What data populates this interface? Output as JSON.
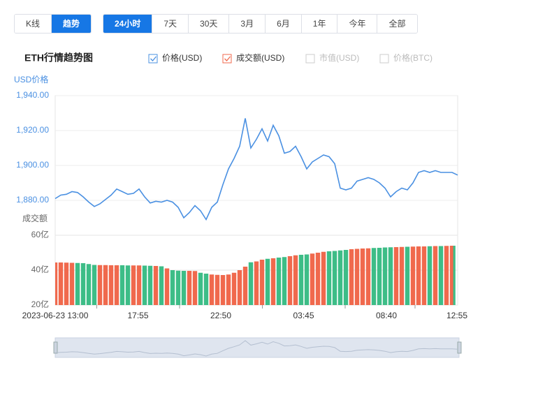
{
  "ui": {
    "view_tabs": [
      "K线",
      "趋势"
    ],
    "active_view": 1,
    "range_tabs": [
      "24小时",
      "7天",
      "30天",
      "3月",
      "6月",
      "1年",
      "今年",
      "全部"
    ],
    "active_range": 0,
    "legend_inactive": [
      "市值(USD)",
      "价格(BTC)"
    ]
  },
  "chart_data": [
    {
      "type": "line",
      "title": "ETH行情趋势图",
      "y_label": "USD价格",
      "series": [
        {
          "name": "价格(USD)",
          "color": "#4a90e2",
          "values": [
            1881,
            1883,
            1883.5,
            1885,
            1884.5,
            1882,
            1879,
            1876.5,
            1878,
            1880.5,
            1883,
            1886.5,
            1885,
            1883.5,
            1884,
            1886.5,
            1882,
            1878.5,
            1879.5,
            1879,
            1880,
            1879,
            1876,
            1870,
            1873,
            1877,
            1874,
            1869,
            1876,
            1879,
            1889,
            1898,
            1904,
            1911,
            1927,
            1910,
            1915,
            1921,
            1914,
            1923,
            1917,
            1907,
            1908,
            1911,
            1905,
            1898,
            1902,
            1904,
            1906,
            1905,
            1901,
            1887,
            1886,
            1887,
            1891,
            1892,
            1893,
            1892,
            1890,
            1887,
            1882,
            1885,
            1887,
            1886,
            1890,
            1896,
            1897,
            1896,
            1897,
            1896,
            1896,
            1896,
            1894.5
          ]
        }
      ],
      "ylim": [
        1860,
        1940
      ],
      "yticks": [
        {
          "value": 1880,
          "label": "1,880.00"
        },
        {
          "value": 1900,
          "label": "1,900.00"
        },
        {
          "value": 1920,
          "label": "1,920.00"
        },
        {
          "value": 1940,
          "label": "1,940.00"
        }
      ],
      "grid": true
    },
    {
      "type": "bar",
      "y_label": "成交额",
      "series": [
        {
          "name": "成交额(USD)",
          "color": "#f0694d",
          "down_color": "#3dbd87",
          "values": [
            44.4,
            44.4,
            44.3,
            44.2,
            44.1,
            44,
            43.5,
            43,
            42.9,
            42.9,
            42.8,
            42.8,
            42.8,
            42.7,
            42.7,
            42.7,
            42.6,
            42.5,
            42.4,
            42.2,
            41,
            40,
            39.7,
            39.6,
            39.6,
            39.5,
            38.5,
            38,
            37.5,
            37.3,
            37.2,
            37.5,
            38.5,
            40,
            42,
            44.5,
            45,
            46,
            46.5,
            46.8,
            47.2,
            47.5,
            48,
            48.5,
            48.8,
            49,
            49.5,
            50,
            50.5,
            50.8,
            51,
            51.3,
            51.6,
            52,
            52.2,
            52.4,
            52.5,
            52.7,
            52.8,
            53,
            53.1,
            53.2,
            53.3,
            53.4,
            53.5,
            53.6,
            53.6,
            53.7,
            53.8,
            53.8,
            53.9,
            54,
            54
          ]
        }
      ],
      "ylim": [
        20,
        60
      ],
      "yticks": [
        {
          "value": 20,
          "label": "20亿"
        },
        {
          "value": 40,
          "label": "40亿"
        },
        {
          "value": 60,
          "label": "60亿"
        }
      ],
      "x_labels": [
        "2023-06-23 13:00",
        "17:55",
        "22:50",
        "03:45",
        "08:40",
        "12:55"
      ]
    }
  ]
}
